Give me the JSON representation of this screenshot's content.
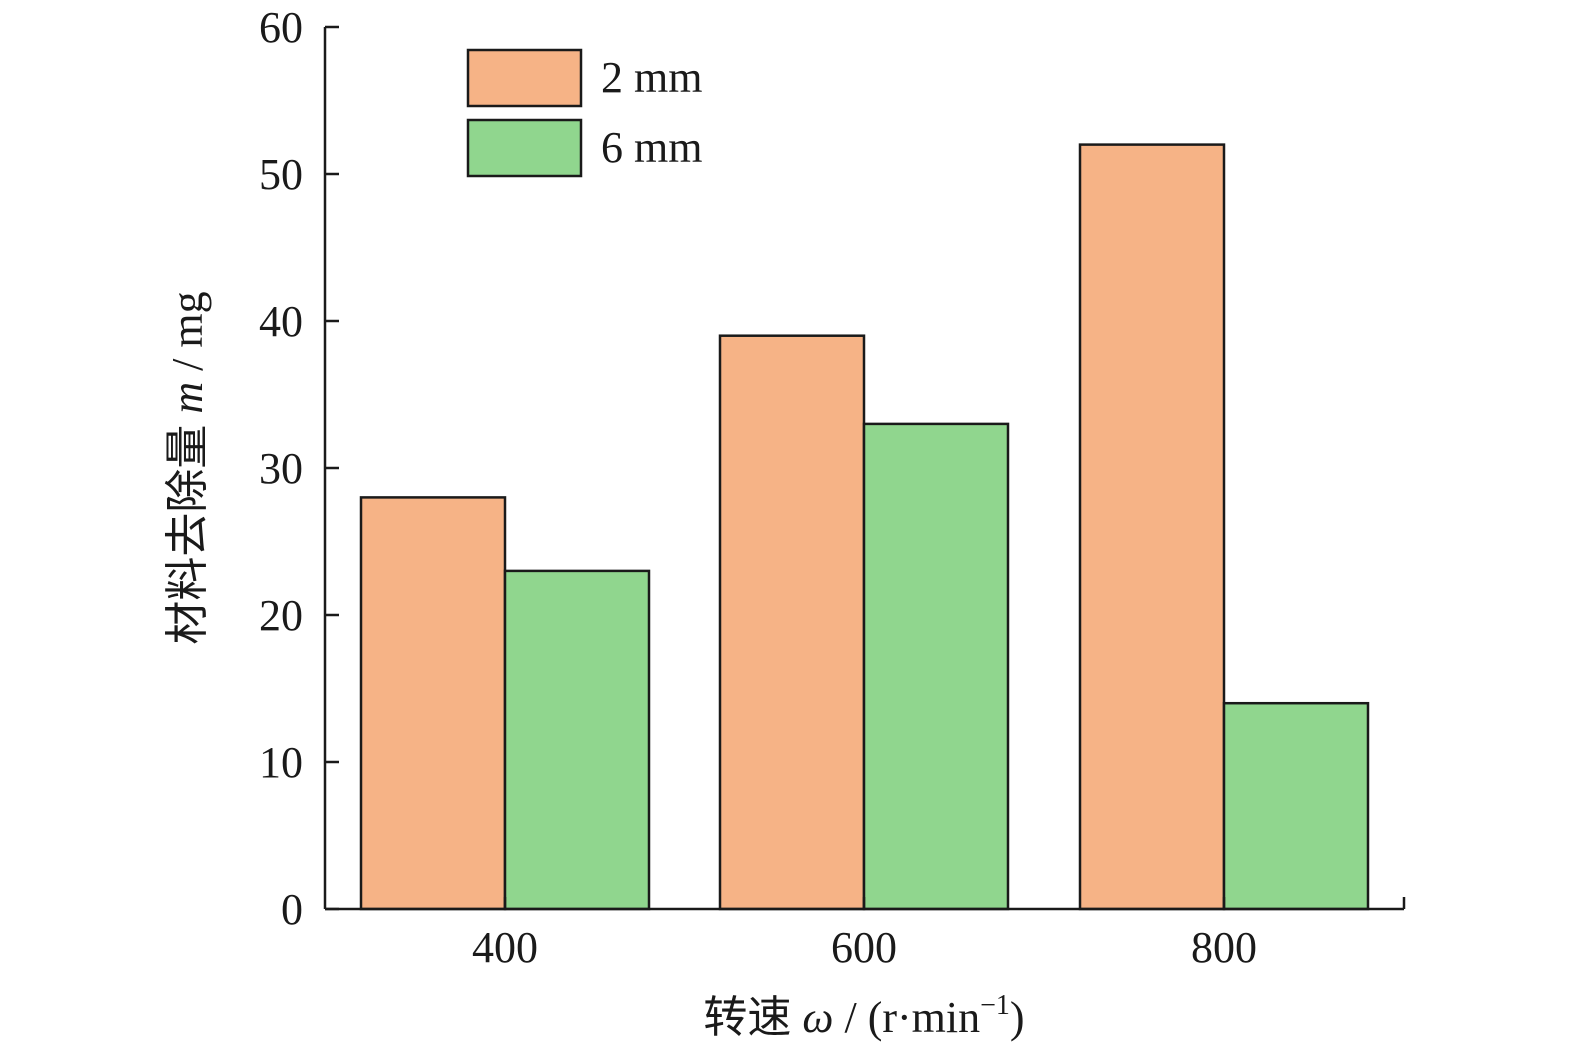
{
  "chart_data": {
    "type": "bar",
    "categories": [
      "400",
      "600",
      "800"
    ],
    "series": [
      {
        "name": "2 mm",
        "values": [
          28,
          39,
          52
        ],
        "color": "#F6B386"
      },
      {
        "name": "6 mm",
        "values": [
          23,
          33,
          14
        ],
        "color": "#90D68E"
      }
    ],
    "title": "",
    "xlabel": {
      "prefix": "转速 ",
      "symbol": "ω",
      "unit_start": " / (r·min",
      "superscript": "−1",
      "unit_end": ")"
    },
    "ylabel": {
      "prefix": "材料去除量 ",
      "symbol": "m",
      "unit": " / mg"
    },
    "ylim": [
      0,
      60
    ],
    "yticks": [
      "0",
      "10",
      "20",
      "30",
      "40",
      "50",
      "60"
    ],
    "legend_position": "top-left",
    "grid": false
  }
}
